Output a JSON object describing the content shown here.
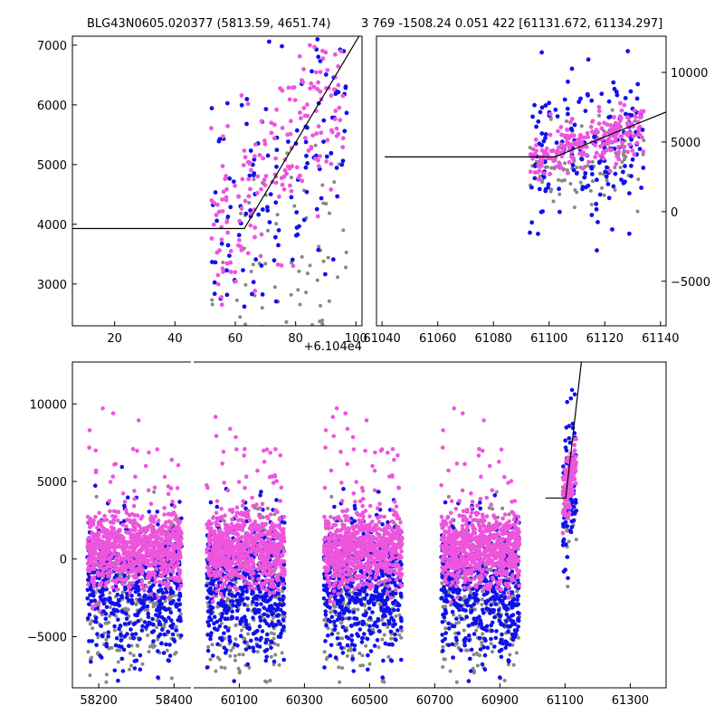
{
  "title_left": "BLG43N0605.020377 (5813.59, 4651.74)",
  "title_right": "3 769 -1508.24 0.051 422 [61131.672, 61134.297]",
  "colors": {
    "primary": "#ee55dd",
    "secondary": "#1010ee",
    "tertiary": "#888888",
    "model": "#000000"
  },
  "chart_data": [
    {
      "type": "scatter",
      "panel": "zoom-left",
      "xlim": [
        6,
        102
      ],
      "ylim": [
        2300,
        7150
      ],
      "x_ticks": [
        20,
        40,
        60,
        80,
        100
      ],
      "x_tick_labels": [
        "20",
        "40",
        "60",
        "80",
        "100"
      ],
      "x_offset_label": "+6.104e4",
      "y_ticks": [
        3000,
        4000,
        5000,
        6000,
        7000
      ],
      "y_tick_labels": [
        "3000",
        "4000",
        "5000",
        "6000",
        "7000"
      ],
      "model_line": {
        "x": [
          6,
          63,
          101
        ],
        "y": [
          3930,
          3930,
          7150
        ]
      },
      "point_cloud": {
        "x_range": [
          52,
          97
        ],
        "primary": {
          "count": 190,
          "y_center_at_xmin": 3700,
          "y_center_at_xmax": 6400,
          "spread": 700
        },
        "secondary": {
          "count": 130,
          "y_center_at_xmin": 3600,
          "y_center_at_xmax": 6100,
          "spread": 1100
        },
        "tertiary": {
          "count": 80,
          "y_center_at_xmin": 3000,
          "y_center_at_xmax": 3900,
          "spread": 900
        }
      }
    },
    {
      "type": "scatter",
      "panel": "zoom-right",
      "xlim": [
        61038,
        61142
      ],
      "ylim": [
        -8200,
        12600
      ],
      "x_ticks": [
        61040,
        61060,
        61080,
        61100,
        61120,
        61140
      ],
      "x_tick_labels": [
        "61040",
        "61060",
        "61080",
        "61100",
        "61120",
        "61140"
      ],
      "y_ticks": [
        -5000,
        0,
        5000,
        10000
      ],
      "y_tick_labels": [
        "−5000",
        "0",
        "5000",
        "10000"
      ],
      "y_axis_side": "right",
      "model_line": {
        "x": [
          61041,
          61102,
          61142
        ],
        "y": [
          3930,
          3930,
          7150
        ]
      },
      "point_cloud": {
        "x_range": [
          61093,
          61134
        ],
        "primary": {
          "count": 220,
          "y_center_at_xmin": 3700,
          "y_center_at_xmax": 6200,
          "spread": 900
        },
        "secondary": {
          "count": 170,
          "y_center_at_xmin": 3200,
          "y_center_at_xmax": 5600,
          "spread": 2600
        },
        "tertiary": {
          "count": 110,
          "y_center_at_xmin": 2600,
          "y_center_at_xmax": 4200,
          "spread": 1600
        }
      }
    },
    {
      "type": "scatter",
      "panel": "full-light-curve",
      "ylim": [
        -8300,
        12700
      ],
      "y_ticks": [
        -5000,
        0,
        5000,
        10000
      ],
      "y_tick_labels": [
        "−5000",
        "0",
        "5000",
        "10000"
      ],
      "segments": [
        {
          "xlim": [
            58130,
            58445
          ],
          "x_ticks": [
            58200,
            58400
          ],
          "x_tick_labels": [
            "58200",
            "58400"
          ]
        },
        {
          "xlim": [
            59960,
            61410
          ],
          "x_ticks": [
            60100,
            60300,
            60500,
            60700,
            60900,
            61100,
            61300
          ],
          "x_tick_labels": [
            "60100",
            "60300",
            "60500",
            "60700",
            "60900",
            "61100",
            "61300"
          ]
        }
      ],
      "model_line": {
        "x": [
          61040,
          61102,
          61150
        ],
        "y": [
          3930,
          3930,
          12700
        ]
      },
      "seasons": [
        {
          "x_range": [
            58170,
            58420
          ],
          "count": 1600
        },
        {
          "x_range": [
            60000,
            60240
          ],
          "count": 1500
        },
        {
          "x_range": [
            60360,
            60600
          ],
          "count": 1500
        },
        {
          "x_range": [
            60720,
            60960
          ],
          "count": 1500
        }
      ],
      "event_cluster": {
        "x_range": [
          61093,
          61135
        ],
        "count": 260
      }
    }
  ]
}
